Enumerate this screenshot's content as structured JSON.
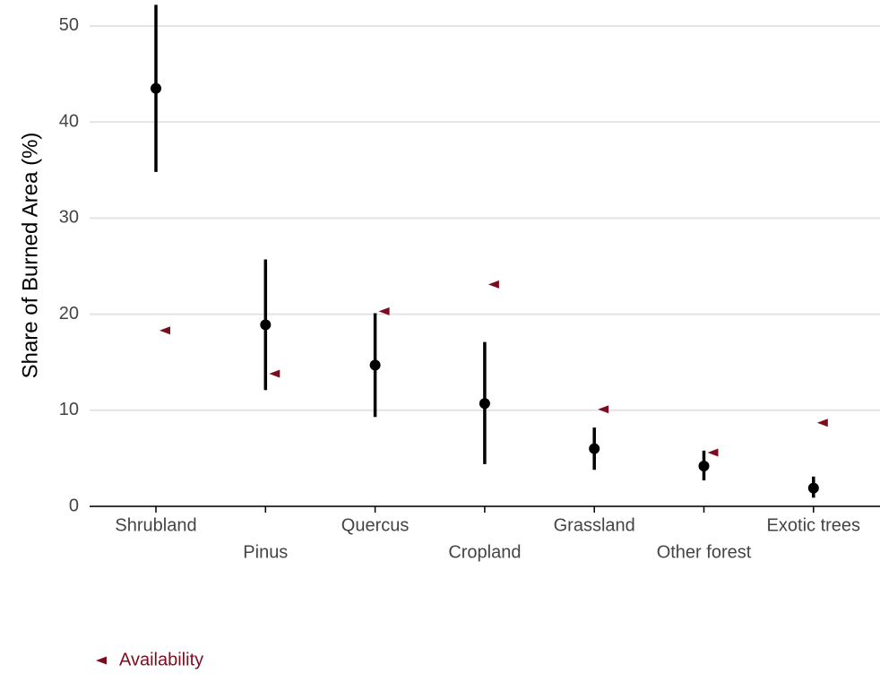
{
  "chart_data": {
    "type": "errorbar",
    "y_label": "Share of Burned Area (%)",
    "categories": [
      "Shrubland",
      "Pinus",
      "Quercus",
      "Cropland",
      "Grassland",
      "Other forest",
      "Exotic trees"
    ],
    "values": [
      43.5,
      18.9,
      14.7,
      10.7,
      6.0,
      4.2,
      1.9
    ],
    "lower": [
      34.8,
      12.1,
      9.3,
      4.4,
      3.8,
      2.7,
      0.9
    ],
    "upper": [
      52.2,
      25.7,
      20.1,
      17.1,
      8.2,
      5.8,
      3.1
    ],
    "color": "#000000",
    "availability": {
      "name": "Availability",
      "color": "#7b0d1e",
      "values": [
        18.3,
        13.8,
        20.3,
        23.1,
        10.1,
        5.6,
        8.7
      ]
    },
    "ylim": [
      0,
      52.7
    ],
    "yticks": [
      0,
      10,
      20,
      30,
      40,
      50
    ],
    "grid": true,
    "legend": "bottom-left"
  }
}
